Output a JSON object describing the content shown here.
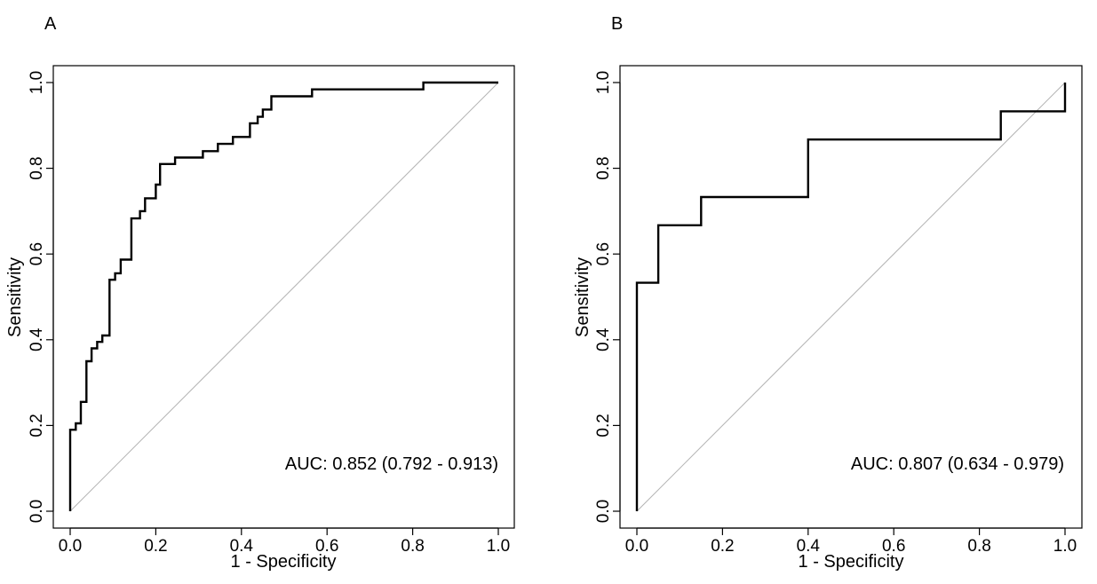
{
  "chart_data": [
    {
      "type": "line",
      "panel_label": "A",
      "title": "",
      "xlabel": "1 - Specificity",
      "ylabel": "Sensitivity",
      "xlim": [
        0,
        1
      ],
      "ylim": [
        0,
        1
      ],
      "xticks": [
        "0.0",
        "0.2",
        "0.4",
        "0.6",
        "0.8",
        "1.0"
      ],
      "yticks": [
        "0.0",
        "0.2",
        "0.4",
        "0.6",
        "0.8",
        "1.0"
      ],
      "grid": false,
      "annotation": "AUC: 0.852 (0.792 - 0.913)",
      "reference_line": {
        "x": [
          0,
          1
        ],
        "y": [
          0,
          1
        ]
      },
      "series": [
        {
          "name": "ROC",
          "x": [
            0,
            0,
            0.013,
            0.013,
            0.025,
            0.025,
            0.038,
            0.038,
            0.05,
            0.05,
            0.063,
            0.063,
            0.075,
            0.075,
            0.092,
            0.092,
            0.105,
            0.105,
            0.118,
            0.118,
            0.143,
            0.143,
            0.163,
            0.163,
            0.175,
            0.175,
            0.2,
            0.2,
            0.21,
            0.21,
            0.245,
            0.245,
            0.31,
            0.31,
            0.345,
            0.345,
            0.38,
            0.38,
            0.42,
            0.42,
            0.438,
            0.438,
            0.45,
            0.45,
            0.47,
            0.47,
            0.565,
            0.565,
            0.825,
            0.825,
            1.0
          ],
          "y": [
            0,
            0.19,
            0.19,
            0.205,
            0.205,
            0.255,
            0.255,
            0.35,
            0.35,
            0.38,
            0.38,
            0.395,
            0.395,
            0.41,
            0.41,
            0.54,
            0.54,
            0.555,
            0.555,
            0.587,
            0.587,
            0.683,
            0.683,
            0.7,
            0.7,
            0.73,
            0.73,
            0.762,
            0.762,
            0.81,
            0.81,
            0.825,
            0.825,
            0.84,
            0.84,
            0.857,
            0.857,
            0.873,
            0.873,
            0.905,
            0.905,
            0.92,
            0.92,
            0.937,
            0.937,
            0.968,
            0.968,
            0.984,
            0.984,
            1.0,
            1.0
          ]
        }
      ]
    },
    {
      "type": "line",
      "panel_label": "B",
      "title": "",
      "xlabel": "1 - Specificity",
      "ylabel": "Sensitivity",
      "xlim": [
        0,
        1
      ],
      "ylim": [
        0,
        1
      ],
      "xticks": [
        "0.0",
        "0.2",
        "0.4",
        "0.6",
        "0.8",
        "1.0"
      ],
      "yticks": [
        "0.0",
        "0.2",
        "0.4",
        "0.6",
        "0.8",
        "1.0"
      ],
      "grid": false,
      "annotation": "AUC: 0.807 (0.634 - 0.979)",
      "reference_line": {
        "x": [
          0,
          1
        ],
        "y": [
          0,
          1
        ]
      },
      "series": [
        {
          "name": "ROC",
          "x": [
            0,
            0,
            0.05,
            0.05,
            0.15,
            0.15,
            0.4,
            0.4,
            0.85,
            0.85,
            1.0,
            1.0
          ],
          "y": [
            0,
            0.533,
            0.533,
            0.667,
            0.667,
            0.733,
            0.733,
            0.867,
            0.867,
            0.933,
            0.933,
            1.0
          ]
        }
      ]
    }
  ]
}
